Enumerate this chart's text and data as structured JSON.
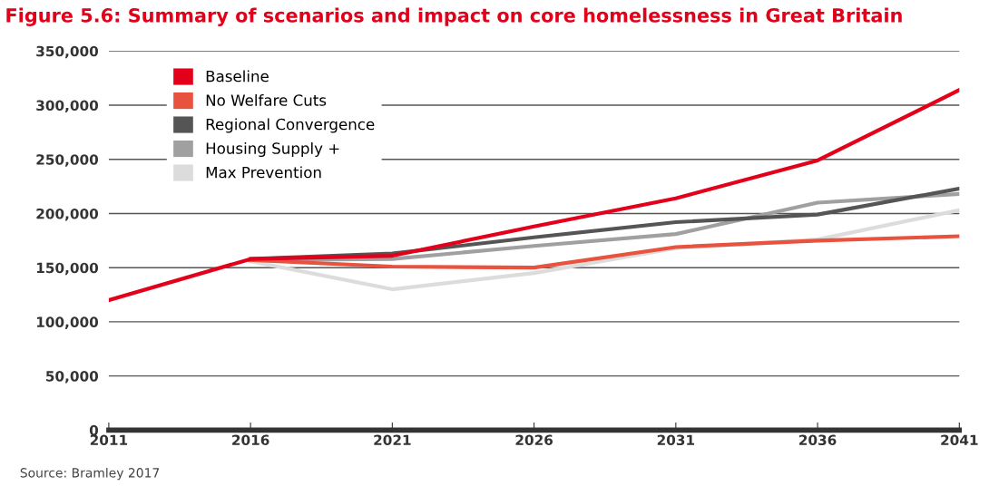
{
  "chart_data": {
    "type": "line",
    "title": "Figure 5.6: Summary of scenarios and impact on core homelessness in Great Britain",
    "x": [
      2011,
      2016,
      2021,
      2026,
      2031,
      2036,
      2041
    ],
    "series": [
      {
        "name": "Max Prevention",
        "color": "#dcdcdc",
        "values": [
          null,
          156000,
          130000,
          145000,
          168000,
          176000,
          203000
        ]
      },
      {
        "name": "Housing Supply +",
        "color": "#a0a0a0",
        "values": [
          null,
          157000,
          158000,
          170000,
          181000,
          210000,
          218000
        ]
      },
      {
        "name": "Regional Convergence",
        "color": "#555555",
        "values": [
          null,
          158000,
          163000,
          178000,
          192000,
          199000,
          223000
        ]
      },
      {
        "name": "No Welfare Cuts",
        "color": "#e8533f",
        "values": [
          null,
          157000,
          151000,
          150000,
          169000,
          175000,
          179000
        ]
      },
      {
        "name": "Baseline",
        "color": "#e2001a",
        "values": [
          120000,
          158000,
          161000,
          188000,
          214000,
          249000,
          314000
        ]
      }
    ],
    "xlim": [
      2011,
      2041
    ],
    "xticks": [
      2011,
      2016,
      2021,
      2026,
      2031,
      2036,
      2041
    ],
    "ylim": [
      0,
      350000
    ],
    "yticks": [
      {
        "value": 0,
        "label": "0"
      },
      {
        "value": 50000,
        "label": "50,000"
      },
      {
        "value": 100000,
        "label": "100,000"
      },
      {
        "value": 150000,
        "label": "150,000"
      },
      {
        "value": 200000,
        "label": "200,000"
      },
      {
        "value": 250000,
        "label": "250,000"
      },
      {
        "value": 300000,
        "label": "300,000"
      },
      {
        "value": 350000,
        "label": "350,000"
      }
    ],
    "grid": "y",
    "legend": "top left",
    "marker": "none",
    "line_style": "solid",
    "annotations": [
      "Source: Bramley 2017"
    ]
  }
}
